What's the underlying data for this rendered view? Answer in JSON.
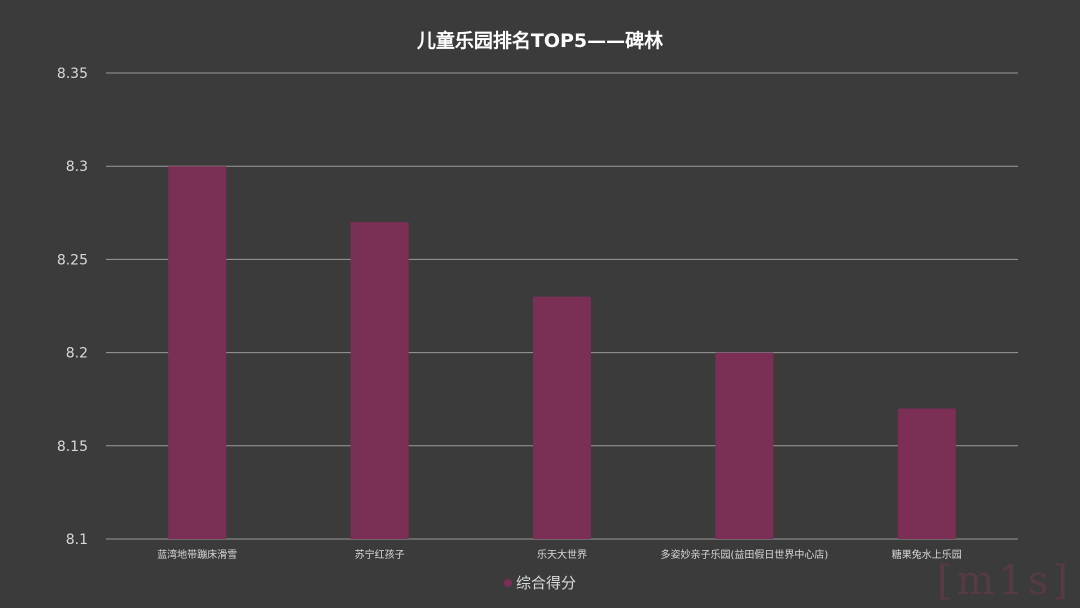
{
  "chart_data": {
    "type": "bar",
    "title": "儿童乐园排名TOP5——碑林",
    "categories": [
      "蓝湾地带蹦床滑雪",
      "苏宁红孩子",
      "乐天大世界",
      "多姿妙亲子乐园(益田假日世界中心店)",
      "糖果兔水上乐园"
    ],
    "series": [
      {
        "name": "综合得分",
        "values": [
          8.3,
          8.27,
          8.23,
          8.2,
          8.17
        ]
      }
    ],
    "xlabel": "",
    "ylabel": "",
    "ylim": [
      8.1,
      8.35
    ],
    "yticks": [
      "8.1",
      "8.15",
      "8.2",
      "8.25",
      "8.3",
      "8.35"
    ],
    "grid": true,
    "legend_position": "bottom"
  },
  "colors": {
    "bar": "#7b2f55",
    "grid": "#9a9a9a",
    "text": "#d9d9d9",
    "background": "#3b3b3b"
  },
  "watermark": "[m1s]"
}
